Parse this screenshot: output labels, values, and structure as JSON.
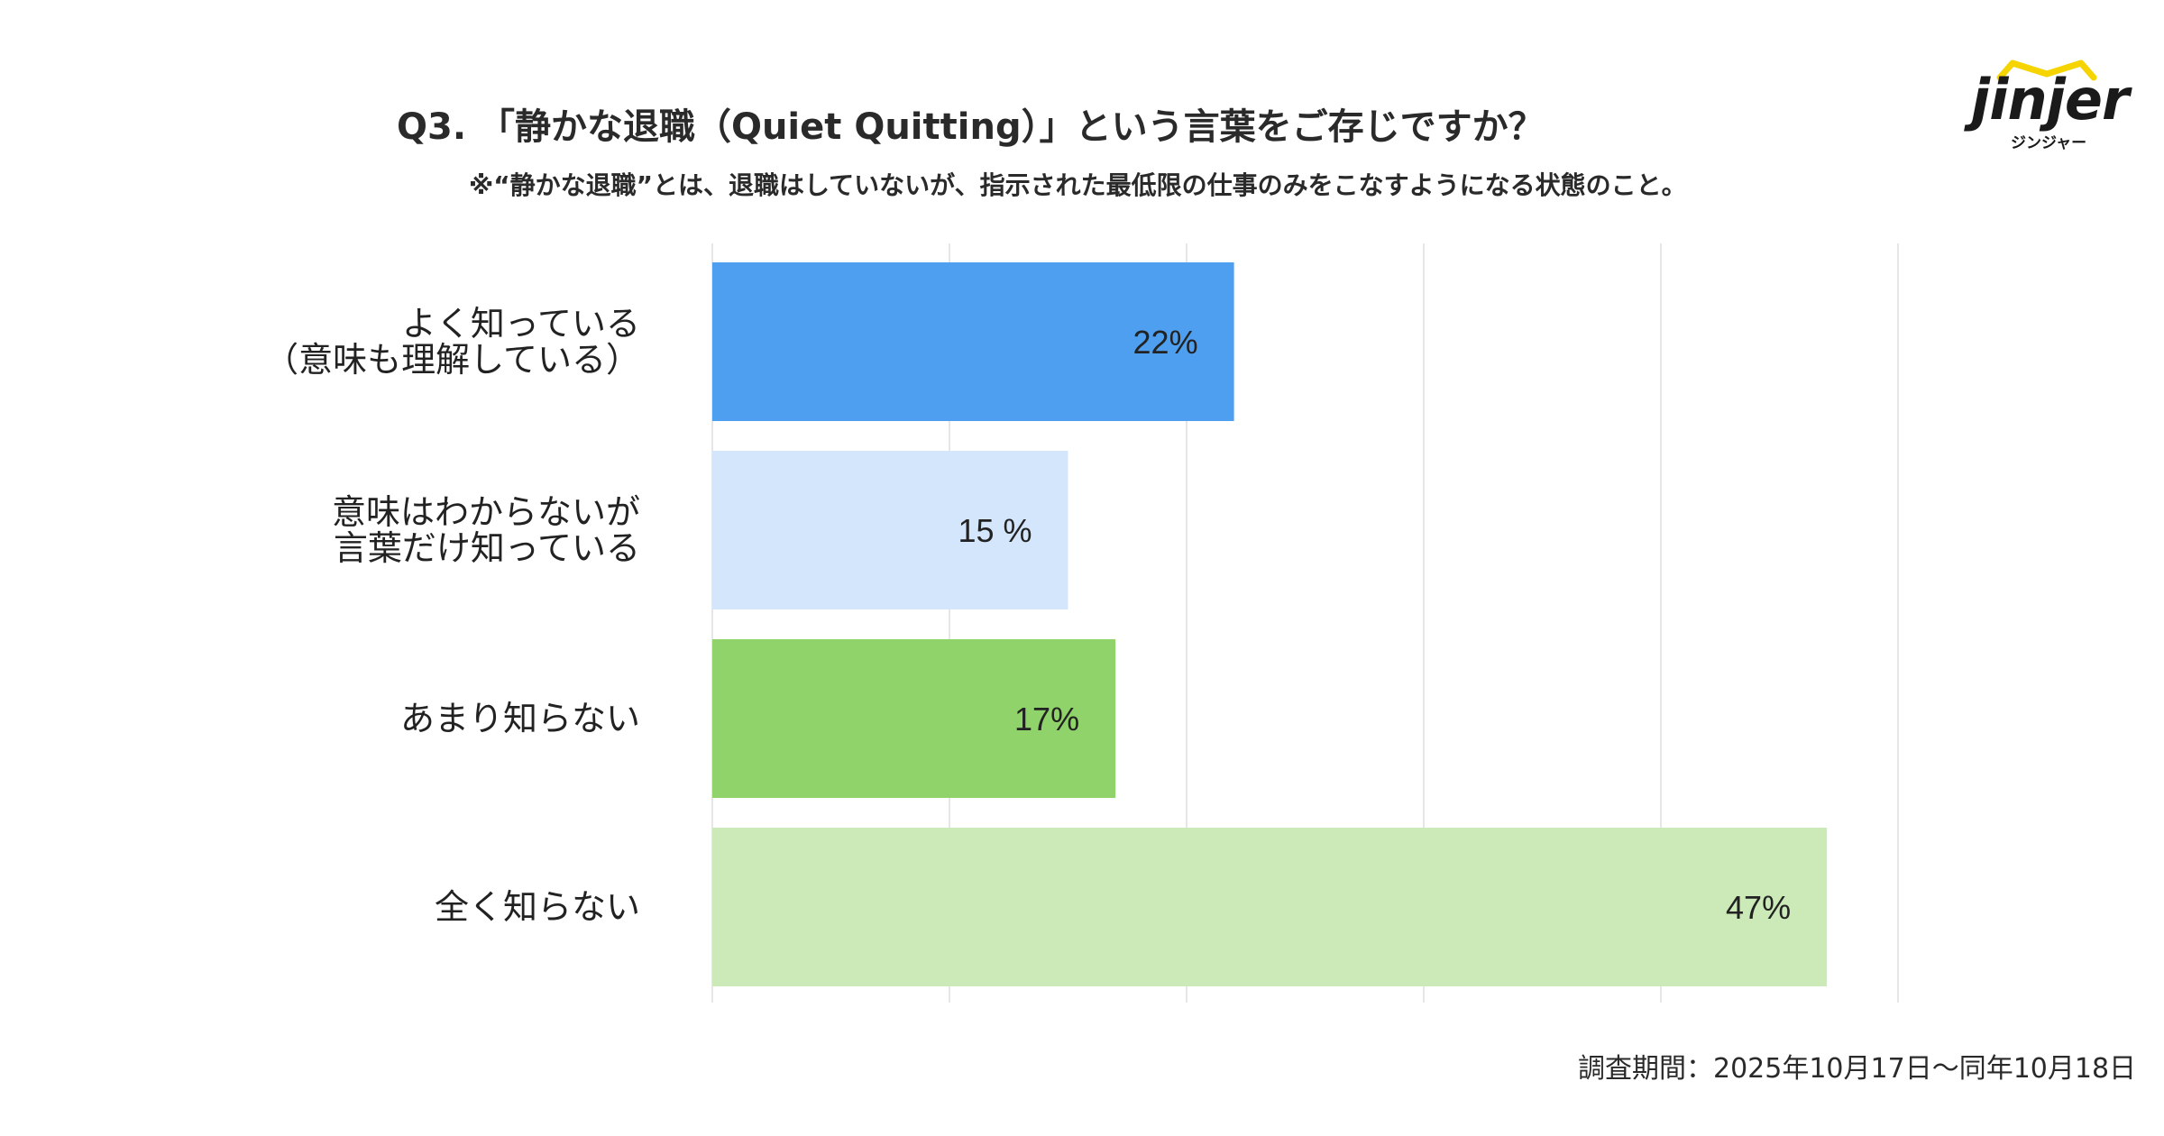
{
  "header": {
    "title": "Q3. 「静かな退職（Quiet Quitting）」という言葉をご存じですか？",
    "subtitle": "※“静かな退職”とは、退職はしていないが、指示された最低限の仕事のみをこなすようになる状態のこと。"
  },
  "logo": {
    "word": "jinjer",
    "kana": "ジンジャー",
    "accent_color": "#F5D400"
  },
  "chart_data": {
    "type": "bar",
    "orientation": "horizontal",
    "categories": [
      [
        "よく知っている",
        "（意味も理解している）"
      ],
      [
        "意味はわからないが",
        "言葉だけ知っている"
      ],
      [
        "あまり知らない"
      ],
      [
        "全く知らない"
      ]
    ],
    "values": [
      22,
      15,
      17,
      47
    ],
    "value_labels": [
      "22%",
      "15 %",
      "17%",
      "47%"
    ],
    "colors": [
      "#4F9FF0",
      "#D3E6FB",
      "#8FD36A",
      "#CBEAB8"
    ],
    "xlim": [
      0,
      50
    ],
    "grid": true,
    "gridline_color": "#DDDDDD"
  },
  "footer": {
    "survey_period": "調査期間：2025年10月17日〜同年10月18日"
  }
}
